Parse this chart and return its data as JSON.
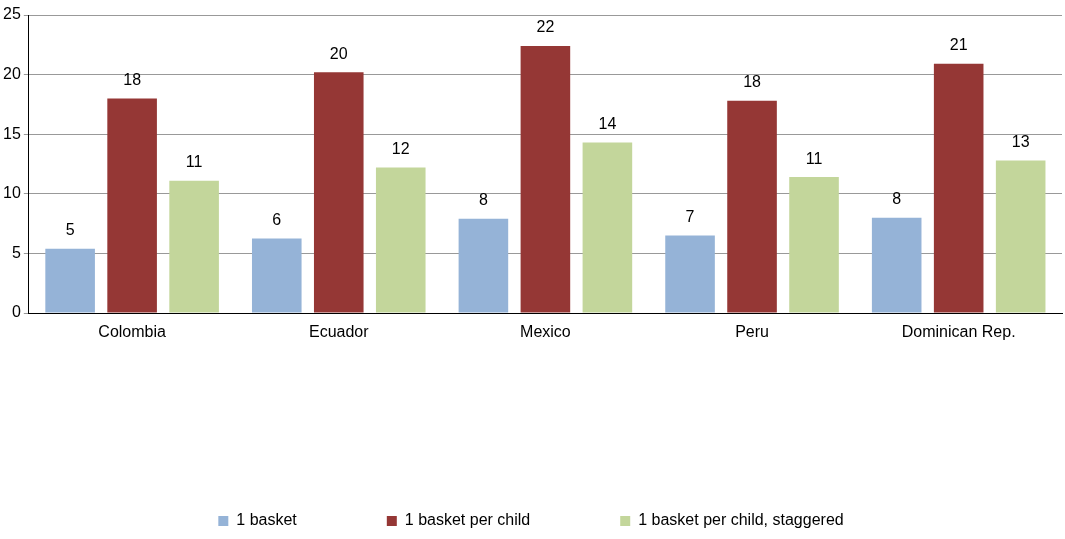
{
  "chart_data": {
    "type": "bar",
    "categories": [
      "Colombia",
      "Ecuador",
      "Mexico",
      "Peru",
      "Dominican Rep."
    ],
    "series": [
      {
        "name": "1 basket",
        "color": "#95b3d7",
        "values": [
          5.4,
          6.25,
          7.9,
          6.5,
          8.0
        ],
        "value_labels": [
          "5",
          "6",
          "8",
          "7",
          "8"
        ]
      },
      {
        "name": "1 basket per child",
        "color": "#953735",
        "values": [
          18.0,
          20.2,
          22.4,
          17.8,
          20.9
        ],
        "value_labels": [
          "18",
          "20",
          "22",
          "18",
          "21"
        ]
      },
      {
        "name": "1 basket per child, staggered",
        "color": "#c3d69b",
        "values": [
          11.1,
          12.2,
          14.3,
          11.4,
          12.8
        ],
        "value_labels": [
          "11",
          "12",
          "14",
          "11",
          "13"
        ]
      }
    ],
    "ylim": [
      0,
      25
    ],
    "yticks": [
      0,
      5,
      10,
      15,
      20,
      25
    ],
    "grid": "y",
    "legend": "bottom"
  }
}
